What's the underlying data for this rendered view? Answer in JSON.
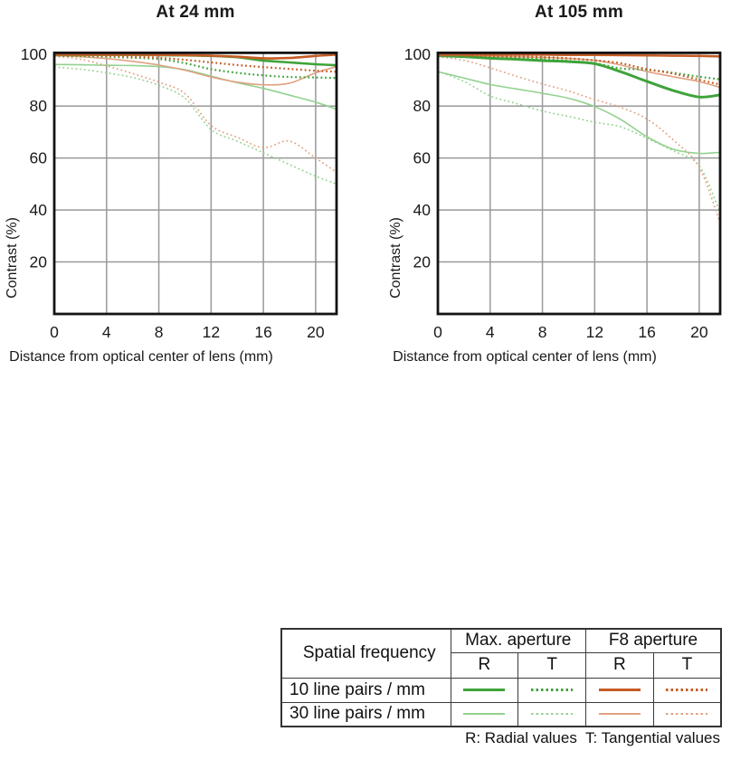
{
  "colors": {
    "green_dark": "#3FA33A",
    "green_light": "#92D28F",
    "orange_dark": "#C45C26",
    "orange_light": "#E0A181",
    "grid": "#999999",
    "frame": "#141414"
  },
  "chart_data": [
    {
      "type": "line",
      "title": "At 24 mm",
      "xlabel": "Distance from optical center of lens (mm)",
      "ylabel": "Contrast (%)",
      "xlim": [
        0,
        21.6
      ],
      "ylim": [
        0,
        100
      ],
      "xticks": [
        0,
        4,
        8,
        12,
        16,
        20
      ],
      "yticks": [
        20,
        40,
        60,
        80,
        100
      ],
      "grid": true,
      "x": [
        0,
        2,
        4,
        6,
        8,
        10,
        12,
        14,
        16,
        18,
        20,
        21.6
      ],
      "series": [
        {
          "id": "max-30-r",
          "name": "30 line pairs / mm, Max. aperture, Radial",
          "color": "green_light",
          "dash": "solid",
          "weight": 1.6,
          "values": [
            96.0,
            95.9,
            95.7,
            95.6,
            95.2,
            94.0,
            91.5,
            89.0,
            86.8,
            84.2,
            81.5,
            78.8
          ]
        },
        {
          "id": "max-30-t",
          "name": "30 line pairs / mm, Max. aperture, Tangential",
          "color": "green_light",
          "dash": "dotted",
          "weight": 1.6,
          "values": [
            95.0,
            94.2,
            92.8,
            91.0,
            88.0,
            83.0,
            71.0,
            66.5,
            62.0,
            57.5,
            53.0,
            50.0
          ]
        },
        {
          "id": "f8-30-r",
          "name": "30 line pairs / mm, F8 aperture, Radial",
          "color": "orange_light",
          "dash": "solid",
          "weight": 1.6,
          "values": [
            99.4,
            99.0,
            98.3,
            97.2,
            95.8,
            93.8,
            91.2,
            89.2,
            88.2,
            88.8,
            92.8,
            95.2
          ]
        },
        {
          "id": "f8-30-t",
          "name": "30 line pairs / mm, F8 aperture, Tangential",
          "color": "orange_light",
          "dash": "dotted",
          "weight": 1.6,
          "values": [
            99.2,
            98.0,
            95.5,
            92.5,
            89.2,
            84.8,
            72.5,
            68.0,
            64.0,
            66.5,
            60.0,
            54.5
          ]
        },
        {
          "id": "max-10-r",
          "name": "10 line pairs / mm, Max. aperture, Radial",
          "color": "green_dark",
          "dash": "solid",
          "weight": 2.6,
          "values": [
            99.7,
            99.7,
            99.7,
            99.7,
            99.6,
            99.5,
            99.3,
            98.8,
            97.5,
            96.8,
            96.1,
            95.7
          ]
        },
        {
          "id": "max-10-t",
          "name": "10 line pairs / mm, Max. aperture, Tangential",
          "color": "green_dark",
          "dash": "dotted",
          "weight": 2.2,
          "values": [
            99.4,
            99.2,
            99.0,
            98.6,
            98.1,
            96.5,
            94.2,
            92.8,
            91.8,
            91.2,
            91.0,
            90.8
          ]
        },
        {
          "id": "f8-10-r",
          "name": "10 line pairs / mm, F8 aperture, Radial",
          "color": "orange_dark",
          "dash": "solid",
          "weight": 2.6,
          "values": [
            99.8,
            99.8,
            99.8,
            99.8,
            99.7,
            99.6,
            99.4,
            99.0,
            98.4,
            98.5,
            99.3,
            99.8
          ]
        },
        {
          "id": "f8-10-t",
          "name": "10 line pairs / mm, F8 aperture, Tangential",
          "color": "orange_dark",
          "dash": "dotted",
          "weight": 2.2,
          "values": [
            99.6,
            99.5,
            99.3,
            99.0,
            98.6,
            97.8,
            96.8,
            95.8,
            95.0,
            94.3,
            93.6,
            93.2
          ]
        }
      ]
    },
    {
      "type": "line",
      "title": "At 105 mm",
      "xlabel": "Distance from optical center of lens (mm)",
      "ylabel": "Contrast (%)",
      "xlim": [
        0,
        21.6
      ],
      "ylim": [
        0,
        100
      ],
      "xticks": [
        0,
        4,
        8,
        12,
        16,
        20
      ],
      "yticks": [
        20,
        40,
        60,
        80,
        100
      ],
      "grid": true,
      "x": [
        0,
        2,
        4,
        6,
        8,
        10,
        12,
        14,
        16,
        18,
        20,
        21.6
      ],
      "series": [
        {
          "id": "max-30-r",
          "name": "30 line pairs / mm, Max. aperture, Radial",
          "color": "green_light",
          "dash": "solid",
          "weight": 1.6,
          "values": [
            93.2,
            90.8,
            88.3,
            86.6,
            84.9,
            83.0,
            79.8,
            74.8,
            68.2,
            63.4,
            61.8,
            62.2
          ]
        },
        {
          "id": "max-30-t",
          "name": "30 line pairs / mm, Max. aperture, Tangential",
          "color": "green_light",
          "dash": "dotted",
          "weight": 1.6,
          "values": [
            93.4,
            89.5,
            83.9,
            81.0,
            78.1,
            76.0,
            73.8,
            72.0,
            67.6,
            62.8,
            57.0,
            39.0
          ]
        },
        {
          "id": "f8-30-r",
          "name": "30 line pairs / mm, F8 aperture, Radial",
          "color": "orange_light",
          "dash": "solid",
          "weight": 1.6,
          "values": [
            99.5,
            99.4,
            99.2,
            99.0,
            98.7,
            98.3,
            97.6,
            95.8,
            93.3,
            91.3,
            89.4,
            87.2
          ]
        },
        {
          "id": "f8-30-t",
          "name": "30 line pairs / mm, F8 aperture, Tangential",
          "color": "orange_light",
          "dash": "dotted",
          "weight": 1.6,
          "values": [
            99.0,
            97.6,
            94.7,
            91.5,
            88.5,
            85.8,
            82.5,
            79.5,
            75.0,
            67.0,
            56.4,
            35.0
          ]
        },
        {
          "id": "max-10-r",
          "name": "10 line pairs / mm, Max. aperture, Radial",
          "color": "green_dark",
          "dash": "solid",
          "weight": 3.0,
          "values": [
            99.4,
            99.0,
            98.4,
            98.0,
            97.5,
            97.1,
            96.3,
            93.2,
            89.5,
            86.0,
            83.5,
            84.3
          ]
        },
        {
          "id": "max-10-t",
          "name": "10 line pairs / mm, Max. aperture, Tangential",
          "color": "green_dark",
          "dash": "dotted",
          "weight": 2.2,
          "values": [
            99.3,
            99.1,
            98.8,
            98.5,
            98.1,
            97.4,
            96.5,
            94.5,
            94.0,
            92.8,
            91.3,
            90.3
          ]
        },
        {
          "id": "f8-10-r",
          "name": "10 line pairs / mm, F8 aperture, Radial",
          "color": "orange_dark",
          "dash": "solid",
          "weight": 2.6,
          "values": [
            99.8,
            99.8,
            99.8,
            99.8,
            99.8,
            99.7,
            99.7,
            99.6,
            99.5,
            99.4,
            99.3,
            99.1
          ]
        },
        {
          "id": "f8-10-t",
          "name": "10 line pairs / mm, F8 aperture, Tangential",
          "color": "orange_dark",
          "dash": "dotted",
          "weight": 2.2,
          "values": [
            99.5,
            99.4,
            99.3,
            99.1,
            98.9,
            98.4,
            97.6,
            96.5,
            94.2,
            92.5,
            90.1,
            88.3
          ]
        }
      ]
    }
  ],
  "legend_table": {
    "col1_header": "Spatial frequency",
    "group_headers": [
      "Max. aperture",
      "F8 aperture"
    ],
    "sub_headers": [
      "R",
      "T",
      "R",
      "T"
    ],
    "rows": [
      {
        "label": "10 line pairs / mm",
        "thickness": 3,
        "swatches": [
          {
            "color": "green_dark",
            "style": "solid"
          },
          {
            "color": "green_dark",
            "style": "dotted"
          },
          {
            "color": "orange_dark",
            "style": "solid"
          },
          {
            "color": "orange_dark",
            "style": "dotted"
          }
        ]
      },
      {
        "label": "30 line pairs / mm",
        "thickness": 2,
        "swatches": [
          {
            "color": "green_light",
            "style": "solid"
          },
          {
            "color": "green_light",
            "style": "dotted"
          },
          {
            "color": "orange_light",
            "style": "solid"
          },
          {
            "color": "orange_light",
            "style": "dotted"
          }
        ]
      }
    ],
    "footnote": "R: Radial values  T: Tangential values"
  }
}
